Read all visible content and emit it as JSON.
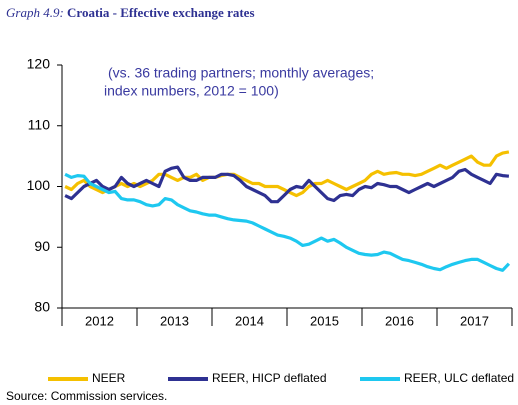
{
  "chart_data": {
    "type": "line",
    "title_prefix": "Graph 4.9:",
    "title": "Croatia - Effective exchange rates",
    "annotation": [
      "(vs. 36 trading partners;  monthly averages;",
      "index numbers, 2012 = 100)"
    ],
    "source": "Source: Commission services.",
    "categories": [
      null,
      null,
      null,
      null,
      null,
      "2012",
      null,
      null,
      null,
      null,
      null,
      null,
      null,
      null,
      null,
      null,
      null,
      "2013",
      null,
      null,
      null,
      null,
      null,
      null,
      null,
      null,
      null,
      null,
      null,
      "2014",
      null,
      null,
      null,
      null,
      null,
      null,
      null,
      null,
      null,
      null,
      null,
      "2015",
      null,
      null,
      null,
      null,
      null,
      null,
      null,
      null,
      null,
      null,
      null,
      "2016",
      null,
      null,
      null,
      null,
      null,
      null,
      null,
      null,
      null,
      null,
      null,
      "2017",
      null,
      null,
      null,
      null,
      null,
      null
    ],
    "ylim": [
      80,
      120
    ],
    "yticks": [
      80,
      90,
      100,
      110,
      120
    ],
    "legend": "bottom",
    "series": [
      {
        "name": "NEER",
        "color": "#f5c000",
        "values": [
          100,
          99.5,
          100.5,
          101,
          100,
          99.5,
          99,
          99.5,
          100,
          100.5,
          100,
          100.5,
          100,
          100.5,
          101,
          102,
          102,
          101.5,
          101,
          101.5,
          101.5,
          102,
          101,
          101.5,
          101.5,
          101.8,
          102,
          102,
          101.5,
          101,
          100.5,
          100.5,
          100,
          100,
          100,
          99.5,
          99,
          98.5,
          99,
          100,
          100.5,
          100.5,
          101,
          100.5,
          100,
          99.5,
          100,
          100.5,
          101,
          102,
          102.5,
          102,
          102.2,
          102.3,
          102,
          102,
          101.8,
          102,
          102.5,
          103,
          103.5,
          103,
          103.5,
          104,
          104.5,
          105,
          104,
          103.5,
          103.5,
          105,
          105.5,
          105.7
        ]
      },
      {
        "name": "REER, HICP deflated",
        "color": "#2e3192",
        "values": [
          98.5,
          98,
          99,
          100,
          100.5,
          101,
          100,
          99.5,
          100,
          101.5,
          100.5,
          100,
          100.5,
          101,
          100.5,
          100,
          102.5,
          103,
          103.2,
          101.5,
          101,
          101,
          101.5,
          101.5,
          101.5,
          102,
          102,
          101.8,
          101,
          100,
          99.5,
          99,
          98.5,
          97.5,
          97.5,
          98.5,
          99.5,
          100,
          99.8,
          101,
          100,
          99,
          98,
          97.7,
          98.5,
          98.7,
          98.5,
          99.5,
          100,
          99.8,
          100.5,
          100.3,
          100,
          100,
          99.5,
          99,
          99.5,
          100,
          100.5,
          100,
          100.5,
          101,
          101.5,
          102.5,
          102.8,
          102,
          101.5,
          101,
          100.5,
          102,
          101.8,
          101.7
        ]
      },
      {
        "name": "REER, ULC deflated",
        "color": "#1ec8f0",
        "values": [
          102,
          101.5,
          101.8,
          101.7,
          100.5,
          100,
          99.5,
          99,
          99.2,
          98,
          97.8,
          97.8,
          97.5,
          97,
          96.8,
          97,
          98,
          97.8,
          97,
          96.5,
          96,
          95.8,
          95.5,
          95.3,
          95.3,
          95,
          94.7,
          94.5,
          94.4,
          94.3,
          94,
          93.5,
          93,
          92.5,
          92,
          91.8,
          91.5,
          91,
          90.3,
          90.5,
          91,
          91.5,
          91,
          91.3,
          90.7,
          90,
          89.5,
          89,
          88.8,
          88.7,
          88.8,
          89.2,
          89,
          88.5,
          88,
          87.8,
          87.5,
          87.2,
          86.8,
          86.5,
          86.3,
          86.8,
          87.2,
          87.5,
          87.8,
          88,
          88,
          87.5,
          87,
          86.5,
          86.2,
          87.3
        ]
      }
    ]
  }
}
